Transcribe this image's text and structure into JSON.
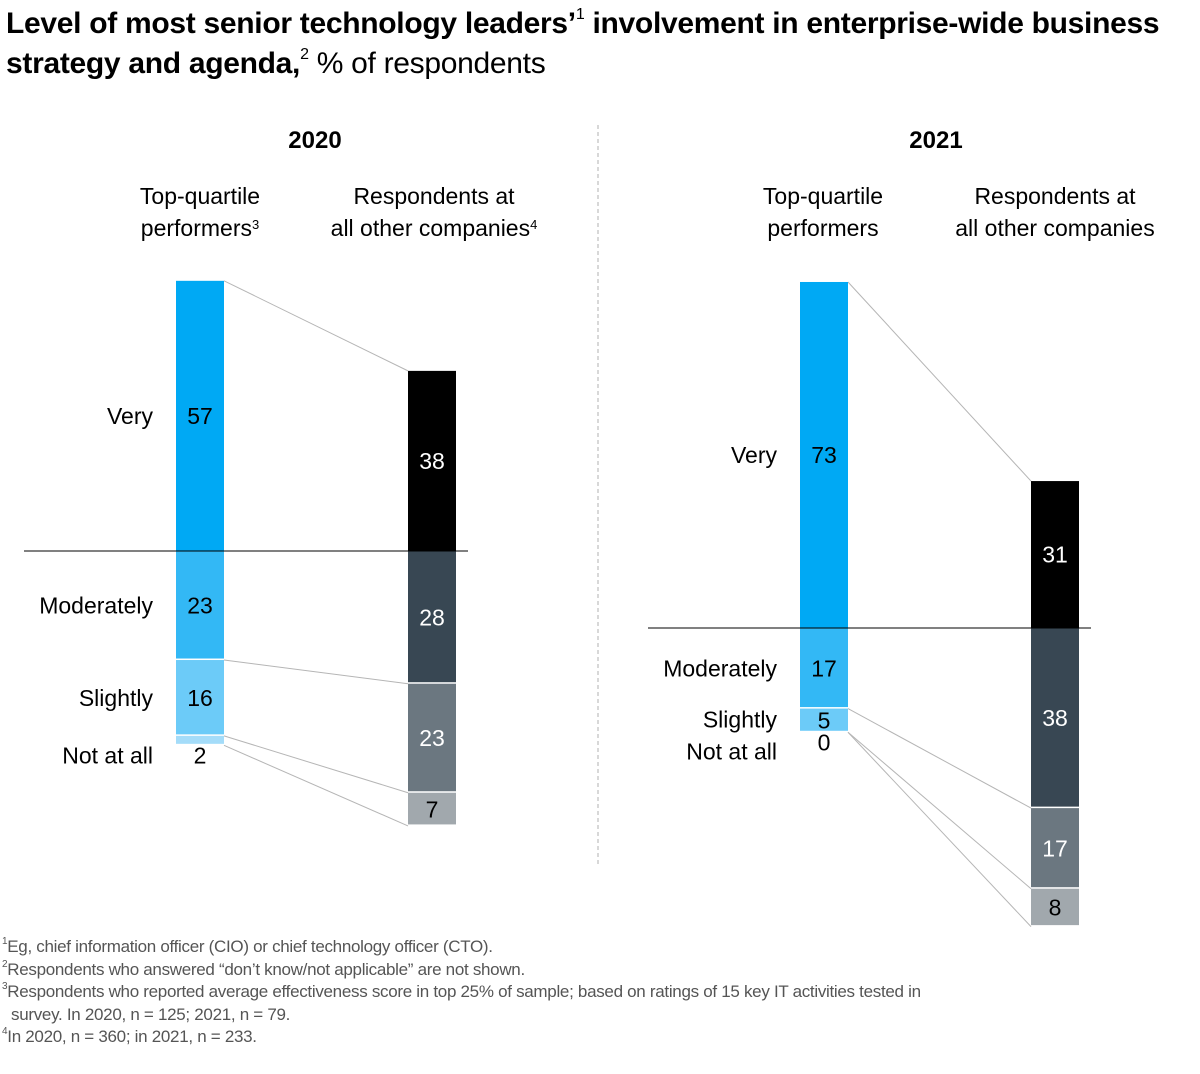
{
  "title": {
    "bold_part1": "Level of most senior technology leaders’",
    "sup1": "1",
    "bold_part2": " involvement in enterprise-wide business strategy and agenda,",
    "sup2": "2",
    "light_part": " % of respondents"
  },
  "chart_data": {
    "type": "bar",
    "subtype": "stacked-bar-comparison",
    "title": "Level of most senior technology leaders’ involvement in enterprise-wide business strategy and agenda, % of respondents",
    "categories": [
      "Very",
      "Moderately",
      "Slightly",
      "Not at all"
    ],
    "panels": [
      {
        "year": "2020",
        "groups": [
          {
            "label_line1": "Top-quartile",
            "label_line2": "performers",
            "label_sup": "3",
            "values": [
              57,
              23,
              16,
              2
            ]
          },
          {
            "label_line1": "Respondents at",
            "label_line2": "all other companies",
            "label_sup": "4",
            "values": [
              38,
              28,
              23,
              7
            ]
          }
        ]
      },
      {
        "year": "2021",
        "groups": [
          {
            "label_line1": "Top-quartile",
            "label_line2": "performers",
            "label_sup": "",
            "values": [
              73,
              17,
              5,
              0
            ]
          },
          {
            "label_line1": "Respondents at",
            "label_line2": "all other companies",
            "label_sup": "",
            "values": [
              31,
              38,
              17,
              8
            ]
          }
        ]
      }
    ],
    "colors": {
      "top_quartile": [
        "#00a9f4",
        "#33b8f5",
        "#6ccbf8",
        "#a4dcf9"
      ],
      "other": [
        "#000000",
        "#384753",
        "#6b7780",
        "#a1a8ad"
      ],
      "label_dark": "#000000",
      "label_light": "#ffffff",
      "connector": "#b5b5b5",
      "divider": "#b0b0b0"
    },
    "unit": "%"
  },
  "footnotes": [
    {
      "sup": "1",
      "text": "Eg, chief information officer (CIO) or chief technology officer (CTO)."
    },
    {
      "sup": "2",
      "text": "Respondents who answered “don’t know/not applicable” are not shown."
    },
    {
      "sup": "3",
      "text": "Respondents who reported average effectiveness score in top 25% of sample; based on ratings of 15 key IT activities tested in",
      "cont": "survey. In 2020, n = 125; 2021, n = 79."
    },
    {
      "sup": "4",
      "text": "In 2020, n = 360; in 2021, n = 233."
    }
  ]
}
